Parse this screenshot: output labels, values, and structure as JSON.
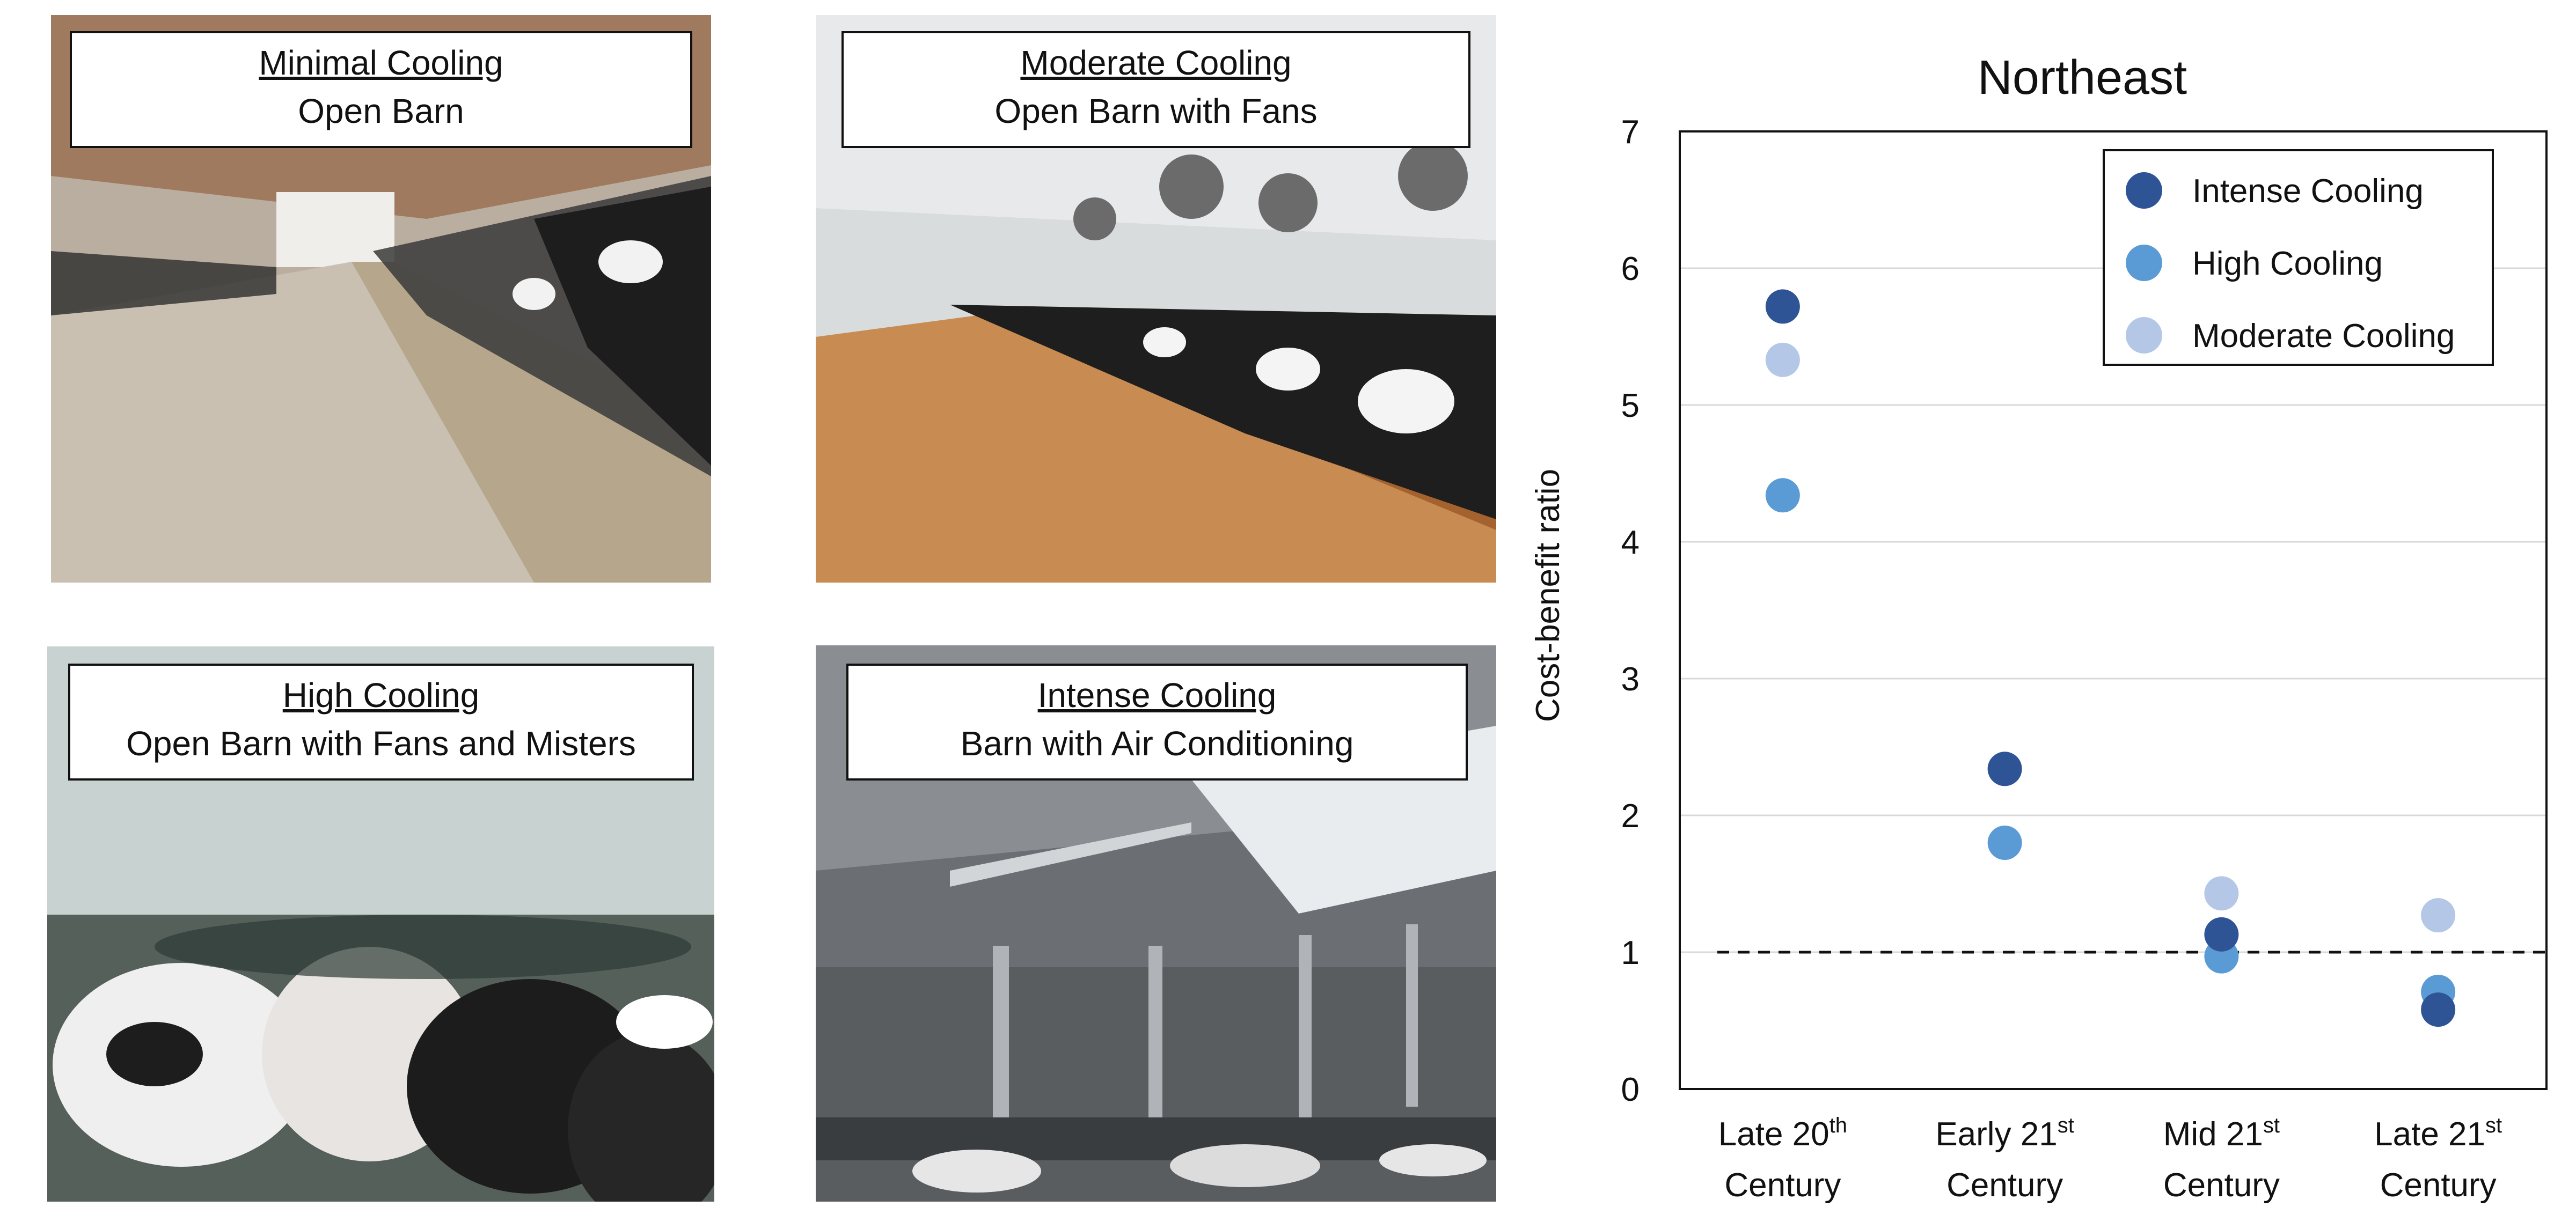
{
  "panels": [
    {
      "id": "minimal",
      "title": "Minimal Cooling",
      "subtitle": "Open Barn",
      "icon": "barn-photo"
    },
    {
      "id": "moderate",
      "title": "Moderate Cooling",
      "subtitle": "Open Barn with Fans",
      "icon": "barn-fans-photo"
    },
    {
      "id": "high",
      "title": "High Cooling",
      "subtitle": "Open Barn with Fans and Misters",
      "icon": "barn-misters-photo"
    },
    {
      "id": "intense",
      "title": "Intense Cooling",
      "subtitle": "Barn with Air Conditioning",
      "icon": "barn-ac-photo"
    }
  ],
  "chart_data": {
    "type": "scatter",
    "title": "Northeast",
    "ylabel": "Cost-benefit ratio",
    "xlabel": "",
    "ylim": [
      0,
      7
    ],
    "yticks": [
      0,
      1,
      2,
      3,
      4,
      5,
      6,
      7
    ],
    "grid": true,
    "legend_position": "top-right",
    "reference_line": 1,
    "categories": [
      {
        "line1": "Late 20",
        "sup": "th",
        "line2": "Century"
      },
      {
        "line1": "Early 21",
        "sup": "st",
        "line2": "Century"
      },
      {
        "line1": "Mid 21",
        "sup": "st",
        "line2": "Century"
      },
      {
        "line1": "Late 21",
        "sup": "st",
        "line2": "Century"
      }
    ],
    "series": [
      {
        "name": "Intense Cooling",
        "color": "#2f5496",
        "values": [
          5.72,
          2.34,
          1.13,
          0.58
        ]
      },
      {
        "name": "High Cooling",
        "color": "#5b9bd5",
        "values": [
          4.34,
          1.8,
          0.97,
          0.71
        ]
      },
      {
        "name": "Moderate Cooling",
        "color": "#b4c7e7",
        "values": [
          5.33,
          null,
          1.43,
          1.27
        ]
      }
    ]
  }
}
